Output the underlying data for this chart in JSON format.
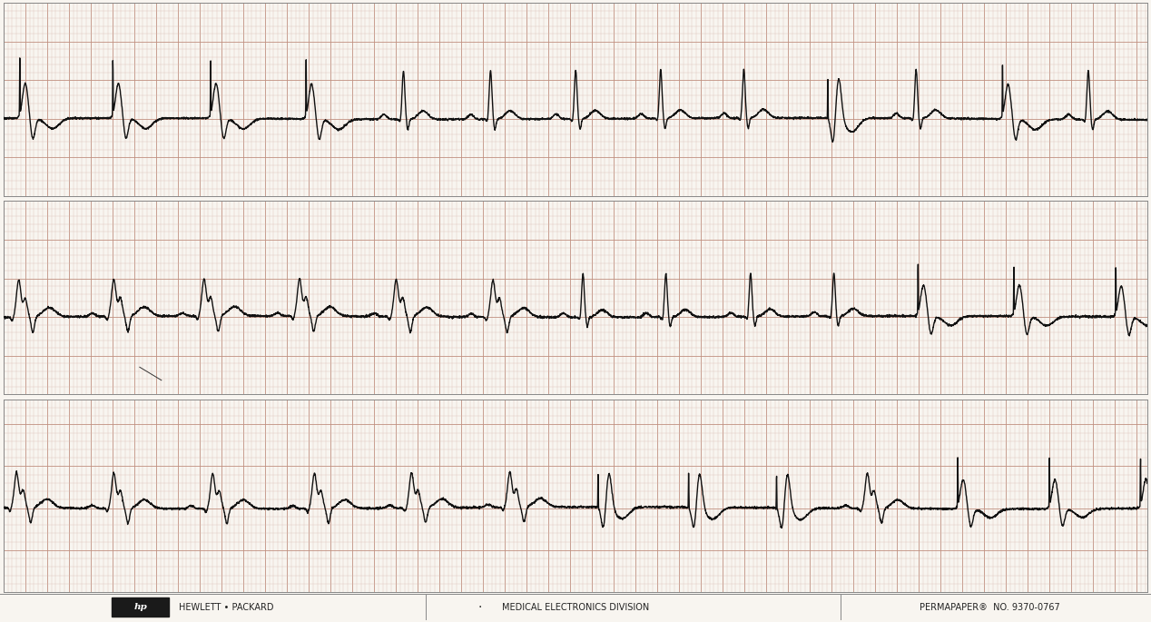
{
  "bg_color": "#f8f5f0",
  "grid_minor_color": "#d8b8b0",
  "grid_major_color": "#c09080",
  "ecg_color": "#111111",
  "line_width": 1.0,
  "strip_count": 3,
  "footer_color": "#222222",
  "border_color": "#888888",
  "footer_text_left": "HEWLETT • PACKARD",
  "footer_text_mid": "MEDICAL ELECTRONICS DIVISION",
  "footer_text_right": "PERMAPAPER®  NO. 9370-0767"
}
